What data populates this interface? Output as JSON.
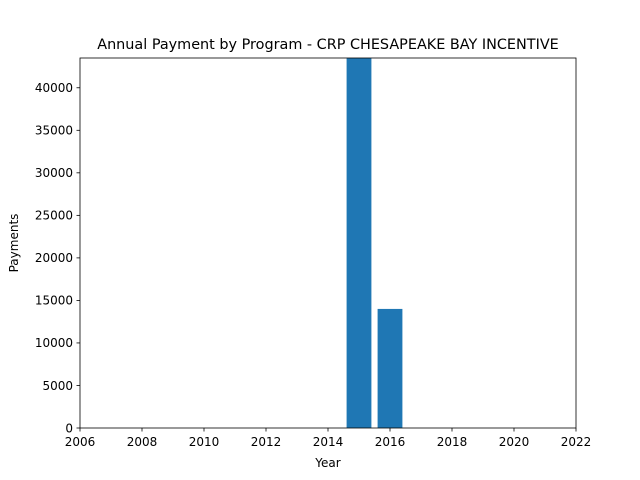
{
  "chart_data": {
    "type": "bar",
    "title": "Annual Payment by Program - CRP CHESAPEAKE BAY INCENTIVE",
    "xlabel": "Year",
    "ylabel": "Payments",
    "x": [
      2015,
      2016
    ],
    "values": [
      43500,
      14000
    ],
    "xlim": [
      2006,
      2022
    ],
    "ylim": [
      0,
      43500
    ],
    "xticks": [
      "2006",
      "2008",
      "2010",
      "2012",
      "2014",
      "2016",
      "2018",
      "2020",
      "2022"
    ],
    "yticks": [
      "0",
      "5000",
      "10000",
      "15000",
      "20000",
      "25000",
      "30000",
      "35000",
      "40000"
    ],
    "bar_color": "#1f77b4",
    "grid": false,
    "legend": "none"
  }
}
